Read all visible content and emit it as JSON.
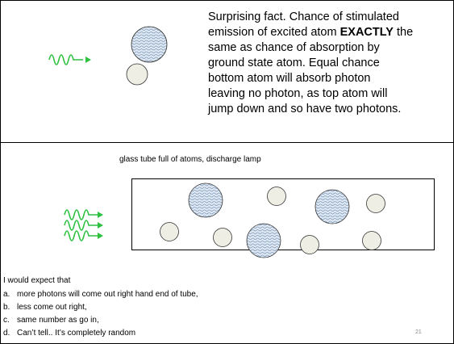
{
  "slide": {
    "top_text": [
      "Surprising fact.  Chance of stimulated",
      [
        "emission of excited atom ",
        "EXACTLY",
        " the"
      ],
      "same as chance of absorption by",
      "ground state atom. Equal chance",
      "bottom atom will absorb photon",
      "leaving no photon, as top atom will",
      "jump down and so have two photons."
    ],
    "caption": "glass tube full of atoms,  discharge lamp",
    "question": "I would expect that",
    "options": [
      {
        "label": "a.",
        "text": "more photons will come out right hand end of tube,"
      },
      {
        "label": "b.",
        "text": " less come out right,"
      },
      {
        "label": "c.",
        "text": "same number as go in,"
      },
      {
        "label": "d.",
        "text": "Can’t tell.. It’s completely random"
      }
    ],
    "page_number": "21"
  }
}
